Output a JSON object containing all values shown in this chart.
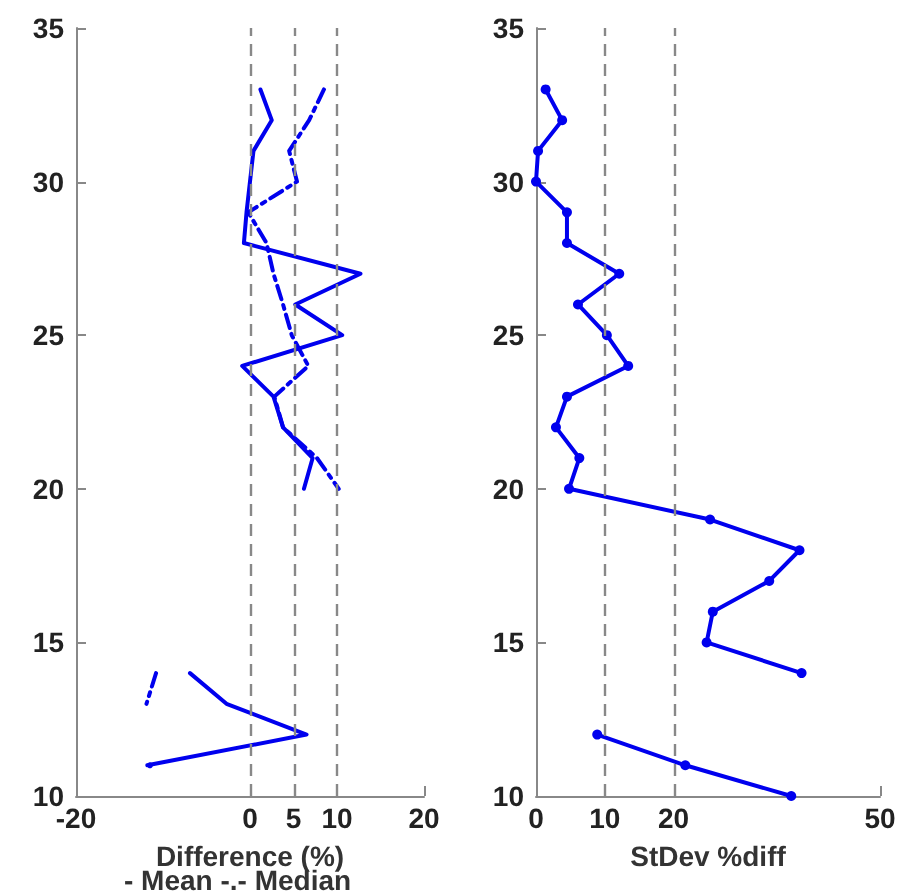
{
  "chart_data": [
    {
      "type": "line",
      "xlabel": "Difference (%)",
      "annotations": [
        "- Mean -.- Median"
      ],
      "xlim": [
        -20,
        20
      ],
      "xticks": [
        -20,
        0,
        5,
        10,
        20
      ],
      "ylim": [
        10,
        35
      ],
      "yticks": [
        10,
        15,
        20,
        25,
        30,
        35
      ],
      "grid": false,
      "marker": "none",
      "ref_lines": [
        {
          "axis": "x",
          "value": 0,
          "color": "#888888",
          "line_style": "dashed"
        },
        {
          "axis": "x",
          "value": 5,
          "color": "#888888",
          "line_style": "dashed"
        },
        {
          "axis": "x",
          "value": 10,
          "color": "#888888",
          "line_style": "dashed"
        }
      ],
      "series": [
        {
          "color": "#0000ee",
          "line_style": "solid",
          "x": [
            1.2,
            2.5,
            0.4,
            0,
            -0.4,
            -0.7,
            12.7,
            5.2,
            10.6,
            -0.9,
            2.7,
            3.8,
            7.2,
            6.2,
            null,
            null,
            null,
            null,
            null,
            -6.9,
            -2.7,
            6.5,
            -11.8,
            null
          ],
          "values": [
            33,
            32,
            31,
            30,
            29,
            28,
            27,
            26,
            25,
            24,
            23,
            22,
            21,
            20,
            null,
            null,
            null,
            null,
            null,
            14,
            13,
            12,
            11,
            null
          ]
        },
        {
          "color": "#0000ee",
          "line_style": "dashed",
          "x": [
            8.5,
            6.8,
            4.5,
            5.4,
            -0.2,
            1.9,
            2.7,
            3.8,
            4.8,
            6.7,
            2.8,
            3.8,
            7.7,
            10.2,
            null,
            null,
            null,
            null,
            null,
            -10.8,
            -11.9,
            null,
            -11.5,
            null
          ],
          "values": [
            33,
            32,
            31,
            30,
            29,
            28,
            27,
            26,
            25,
            24,
            23,
            22,
            21,
            20,
            null,
            null,
            null,
            null,
            null,
            14,
            13,
            null,
            11,
            null
          ]
        }
      ]
    },
    {
      "type": "line",
      "xlabel": "StDev %diff",
      "xlim": [
        0,
        50
      ],
      "xticks": [
        0,
        10,
        20,
        50
      ],
      "ylim": [
        10,
        35
      ],
      "yticks": [
        10,
        15,
        20,
        25,
        30,
        35
      ],
      "grid": false,
      "marker": "circle",
      "ref_lines": [
        {
          "axis": "x",
          "value": 10,
          "color": "#888888",
          "line_style": "dashed"
        },
        {
          "axis": "x",
          "value": 20,
          "color": "#888888",
          "line_style": "dashed"
        }
      ],
      "series": [
        {
          "color": "#0000ee",
          "line_style": "solid",
          "x": [
            1.4,
            3.8,
            0.3,
            0,
            4.5,
            4.5,
            12.1,
            6.1,
            10.3,
            13.4,
            4.5,
            2.9,
            6.3,
            4.8,
            25.3,
            38.3,
            33.9,
            25.7,
            24.8,
            38.6,
            null,
            8.9,
            21.7,
            37.1
          ],
          "values": [
            33,
            32,
            31,
            30,
            29,
            28,
            27,
            26,
            25,
            24,
            23,
            22,
            21,
            20,
            19,
            18,
            17,
            16,
            15,
            14,
            null,
            12,
            11,
            10
          ]
        }
      ]
    }
  ]
}
